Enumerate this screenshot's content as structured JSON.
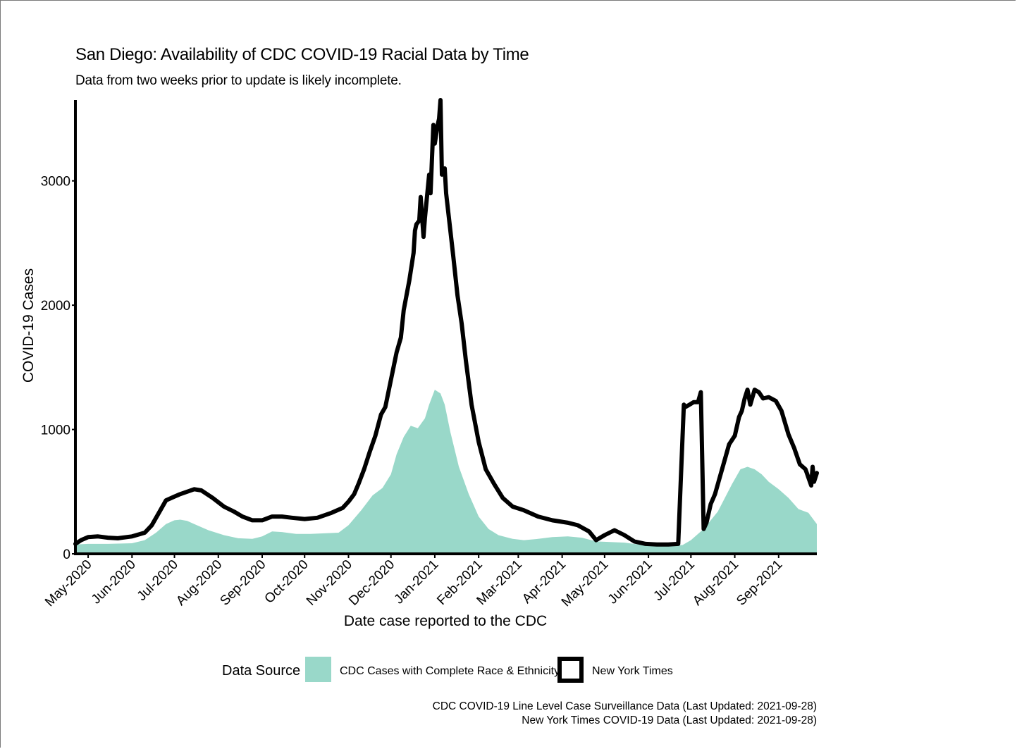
{
  "chart_data": {
    "type": "area",
    "title": "San Diego: Availability of CDC COVID-19 Racial Data by Time",
    "subtitle": "Data from two weeks prior to update is likely incomplete.",
    "xlabel": "Date case reported to the CDC",
    "ylabel": "COVID-19 Cases",
    "ylim": [
      0,
      3650
    ],
    "xlim": [
      "2020-04-22",
      "2021-09-28"
    ],
    "y_ticks": [
      0,
      1000,
      2000,
      3000
    ],
    "y_tick_labels": [
      "0",
      "1000",
      "2000",
      "3000"
    ],
    "x_ticks": [
      "2020-05-01",
      "2020-06-01",
      "2020-07-01",
      "2020-08-01",
      "2020-09-01",
      "2020-10-01",
      "2020-11-01",
      "2020-12-01",
      "2021-01-01",
      "2021-02-01",
      "2021-03-01",
      "2021-04-01",
      "2021-05-01",
      "2021-06-01",
      "2021-07-01",
      "2021-08-01",
      "2021-09-01"
    ],
    "x_tick_labels": [
      "May-2020",
      "Jun-2020",
      "Jul-2020",
      "Aug-2020",
      "Sep-2020",
      "Oct-2020",
      "Nov-2020",
      "Dec-2020",
      "Jan-2021",
      "Feb-2021",
      "Mar-2021",
      "Apr-2021",
      "May-2021",
      "Jun-2021",
      "Jul-2021",
      "Aug-2021",
      "Sep-2021"
    ],
    "grid": false,
    "legend_position": "bottom",
    "legend_title": "Data Source",
    "series": [
      {
        "name": "CDC Cases with Complete Race & Ethnicity",
        "kind": "area",
        "color": "#99d8c9",
        "x": [
          "2020-04-22",
          "2020-05-01",
          "2020-05-15",
          "2020-06-01",
          "2020-06-10",
          "2020-06-18",
          "2020-06-25",
          "2020-07-01",
          "2020-07-05",
          "2020-07-10",
          "2020-07-15",
          "2020-07-25",
          "2020-08-05",
          "2020-08-15",
          "2020-08-25",
          "2020-09-01",
          "2020-09-08",
          "2020-09-15",
          "2020-09-25",
          "2020-10-05",
          "2020-10-15",
          "2020-10-25",
          "2020-11-01",
          "2020-11-10",
          "2020-11-18",
          "2020-11-25",
          "2020-12-01",
          "2020-12-05",
          "2020-12-10",
          "2020-12-15",
          "2020-12-20",
          "2020-12-25",
          "2020-12-28",
          "2021-01-01",
          "2021-01-05",
          "2021-01-08",
          "2021-01-12",
          "2021-01-18",
          "2021-01-25",
          "2021-02-01",
          "2021-02-08",
          "2021-02-15",
          "2021-02-25",
          "2021-03-05",
          "2021-03-15",
          "2021-03-25",
          "2021-04-05",
          "2021-04-15",
          "2021-04-25",
          "2021-05-05",
          "2021-05-15",
          "2021-05-25",
          "2021-06-01",
          "2021-06-15",
          "2021-06-25",
          "2021-07-01",
          "2021-07-10",
          "2021-07-20",
          "2021-07-30",
          "2021-08-05",
          "2021-08-10",
          "2021-08-15",
          "2021-08-20",
          "2021-08-25",
          "2021-09-01",
          "2021-09-08",
          "2021-09-15",
          "2021-09-22",
          "2021-09-28"
        ],
        "y": [
          75,
          80,
          80,
          85,
          110,
          170,
          240,
          270,
          275,
          265,
          240,
          190,
          150,
          125,
          120,
          140,
          180,
          175,
          160,
          160,
          165,
          170,
          230,
          350,
          470,
          530,
          640,
          800,
          940,
          1030,
          1010,
          1090,
          1200,
          1320,
          1290,
          1200,
          980,
          700,
          480,
          300,
          200,
          150,
          120,
          110,
          120,
          135,
          140,
          130,
          100,
          95,
          90,
          75,
          70,
          70,
          70,
          110,
          200,
          340,
          560,
          680,
          700,
          680,
          640,
          580,
          520,
          450,
          360,
          330,
          240
        ]
      },
      {
        "name": "New York Times",
        "kind": "line",
        "color": "#000000",
        "x": [
          "2020-04-22",
          "2020-04-26",
          "2020-05-01",
          "2020-05-08",
          "2020-05-15",
          "2020-05-22",
          "2020-06-01",
          "2020-06-10",
          "2020-06-15",
          "2020-06-20",
          "2020-06-25",
          "2020-07-01",
          "2020-07-05",
          "2020-07-10",
          "2020-07-15",
          "2020-07-20",
          "2020-07-28",
          "2020-08-05",
          "2020-08-12",
          "2020-08-18",
          "2020-08-25",
          "2020-09-01",
          "2020-09-08",
          "2020-09-15",
          "2020-09-22",
          "2020-10-01",
          "2020-10-10",
          "2020-10-20",
          "2020-10-28",
          "2020-11-01",
          "2020-11-05",
          "2020-11-08",
          "2020-11-12",
          "2020-11-16",
          "2020-11-20",
          "2020-11-24",
          "2020-11-27",
          "2020-12-01",
          "2020-12-05",
          "2020-12-08",
          "2020-12-10",
          "2020-12-14",
          "2020-12-17",
          "2020-12-18",
          "2020-12-19",
          "2020-12-21",
          "2020-12-22",
          "2020-12-24",
          "2020-12-25",
          "2020-12-28",
          "2020-12-29",
          "2020-12-31",
          "2021-01-01",
          "2021-01-03",
          "2021-01-04",
          "2021-01-05",
          "2021-01-06",
          "2021-01-08",
          "2021-01-09",
          "2021-01-11",
          "2021-01-14",
          "2021-01-17",
          "2021-01-20",
          "2021-01-23",
          "2021-01-27",
          "2021-02-01",
          "2021-02-06",
          "2021-02-12",
          "2021-02-18",
          "2021-02-25",
          "2021-03-05",
          "2021-03-15",
          "2021-03-25",
          "2021-04-05",
          "2021-04-12",
          "2021-04-20",
          "2021-04-25",
          "2021-05-01",
          "2021-05-08",
          "2021-05-15",
          "2021-05-22",
          "2021-05-30",
          "2021-06-07",
          "2021-06-15",
          "2021-06-22",
          "2021-06-26",
          "2021-06-27",
          "2021-06-30",
          "2021-07-03",
          "2021-07-06",
          "2021-07-08",
          "2021-07-10",
          "2021-07-12",
          "2021-07-15",
          "2021-07-18",
          "2021-07-21",
          "2021-07-24",
          "2021-07-28",
          "2021-08-01",
          "2021-08-04",
          "2021-08-06",
          "2021-08-08",
          "2021-08-10",
          "2021-08-12",
          "2021-08-15",
          "2021-08-18",
          "2021-08-21",
          "2021-08-25",
          "2021-08-30",
          "2021-09-03",
          "2021-09-08",
          "2021-09-12",
          "2021-09-16",
          "2021-09-20",
          "2021-09-24",
          "2021-09-25",
          "2021-09-26",
          "2021-09-28"
        ],
        "y": [
          80,
          110,
          135,
          140,
          130,
          125,
          140,
          170,
          230,
          330,
          430,
          460,
          480,
          500,
          520,
          510,
          450,
          380,
          340,
          300,
          270,
          270,
          300,
          300,
          290,
          280,
          290,
          330,
          370,
          420,
          480,
          560,
          680,
          820,
          950,
          1120,
          1180,
          1400,
          1620,
          1740,
          1960,
          2200,
          2420,
          2600,
          2650,
          2680,
          2870,
          2550,
          2700,
          3050,
          2900,
          3450,
          3300,
          3450,
          3500,
          3650,
          3050,
          3100,
          2900,
          2700,
          2400,
          2080,
          1850,
          1550,
          1200,
          900,
          680,
          560,
          450,
          380,
          350,
          300,
          270,
          250,
          230,
          180,
          110,
          150,
          190,
          150,
          100,
          80,
          75,
          75,
          80,
          1200,
          1180,
          1200,
          1220,
          1220,
          1300,
          200,
          250,
          400,
          480,
          600,
          720,
          880,
          950,
          1100,
          1150,
          1250,
          1320,
          1200,
          1320,
          1300,
          1250,
          1260,
          1230,
          1150,
          960,
          850,
          720,
          680,
          550,
          700,
          580,
          650
        ]
      }
    ]
  },
  "footer": {
    "source_cdc": "CDC COVID-19 Line Level Case Surveillance Data (Last Updated: 2021-09-28)",
    "source_nyt": "New York Times COVID-19 Data (Last Updated: 2021-09-28)"
  }
}
